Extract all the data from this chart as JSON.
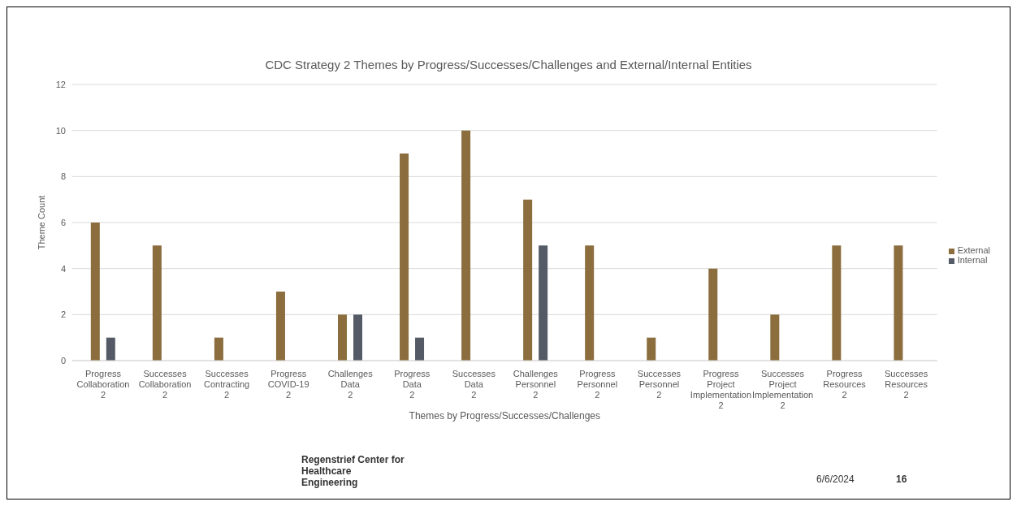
{
  "chart_data": {
    "type": "bar",
    "title": "CDC Strategy 2 Themes by Progress/Successes/Challenges and External/Internal Entities",
    "xlabel": "Themes  by Progress/Successes/Challenges",
    "ylabel": "Theme Count",
    "categories": [
      "Progress Collaboration 2",
      "Successes Collaboration 2",
      "Successes Contracting 2",
      "Progress COVID-19 2",
      "Challenges Data 2",
      "Progress Data 2",
      "Successes Data 2",
      "Challenges Personnel 2",
      "Progress Personnel 2",
      "Successes Personnel 2",
      "Progress Project Implementation 2",
      "Successes Project Implementation 2",
      "Progress Resources 2",
      "Successes Resources 2"
    ],
    "series": [
      {
        "name": "External",
        "color": "#8b6d3e",
        "values": [
          6,
          5,
          1,
          3,
          2,
          9,
          10,
          7,
          5,
          1,
          4,
          2,
          5,
          5
        ]
      },
      {
        "name": "Internal",
        "color": "#555b66",
        "values": [
          1,
          null,
          null,
          null,
          2,
          1,
          null,
          5,
          null,
          null,
          null,
          null,
          null,
          null
        ]
      }
    ],
    "ylim": [
      0,
      12
    ],
    "yticks": [
      0,
      2,
      4,
      6,
      8,
      10,
      12
    ],
    "grid": "y",
    "legend": "right",
    "annotations": [
      "Regenstrief Center for Healthcare Engineering",
      "6/6/2024",
      "16"
    ]
  }
}
